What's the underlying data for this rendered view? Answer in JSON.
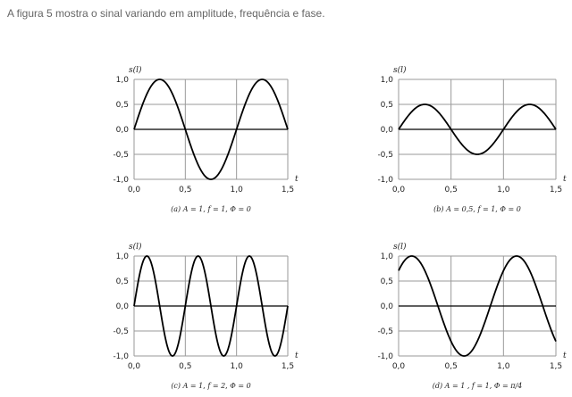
{
  "intro_text": "A figura 5 mostra o sinal variando em amplitude, frequência e fase.",
  "line_color": "#000000",
  "grid_color": "#9a9a9a",
  "chart_data": [
    {
      "type": "line",
      "ylabel": "s(l)",
      "xlabel": "t",
      "caption": "(a) A = 1,  f = 1, Φ = 0",
      "xlim": [
        0,
        1.5
      ],
      "ylim": [
        -1,
        1
      ],
      "xticks": [
        "0,0",
        "0,5",
        "1,0",
        "1,5"
      ],
      "yticks": [
        "1,0",
        "0,5",
        "0,0",
        "-0,5",
        "-1,0"
      ],
      "grid": true,
      "function": "A*sin(2*pi*f*t + phase)",
      "amplitude": 1,
      "frequency": 1,
      "phase": 0
    },
    {
      "type": "line",
      "ylabel": "s(l)",
      "xlabel": "t",
      "caption": "(b) A = 0,5,  f = 1, Φ = 0",
      "xlim": [
        0,
        1.5
      ],
      "ylim": [
        -1,
        1
      ],
      "xticks": [
        "0,0",
        "0,5",
        "1,0",
        "1,5"
      ],
      "yticks": [
        "1,0",
        "0,5",
        "0,0",
        "-0,5",
        "-1,0"
      ],
      "grid": true,
      "function": "A*sin(2*pi*f*t + phase)",
      "amplitude": 0.5,
      "frequency": 1,
      "phase": 0
    },
    {
      "type": "line",
      "ylabel": "s(l)",
      "xlabel": "t",
      "caption": "(c) A = 1,  f = 2, Φ = 0",
      "xlim": [
        0,
        1.5
      ],
      "ylim": [
        -1,
        1
      ],
      "xticks": [
        "0,0",
        "0,5",
        "1,0",
        "1,5"
      ],
      "yticks": [
        "1,0",
        "0,5",
        "0,0",
        "-0,5",
        "-1,0"
      ],
      "grid": true,
      "function": "A*sin(2*pi*f*t + phase)",
      "amplitude": 1,
      "frequency": 2,
      "phase": 0
    },
    {
      "type": "line",
      "ylabel": "s(l)",
      "xlabel": "t",
      "caption": "(d) A = 1 ,  f = 1, Φ = π/4",
      "xlim": [
        0,
        1.5
      ],
      "ylim": [
        -1,
        1
      ],
      "xticks": [
        "0,0",
        "0,5",
        "1,0",
        "1,5"
      ],
      "yticks": [
        "1,0",
        "0,5",
        "0,0",
        "-0,5",
        "-1,0"
      ],
      "grid": true,
      "function": "A*sin(2*pi*f*t + phase)",
      "amplitude": 1,
      "frequency": 1,
      "phase": 0.7853981634
    }
  ]
}
